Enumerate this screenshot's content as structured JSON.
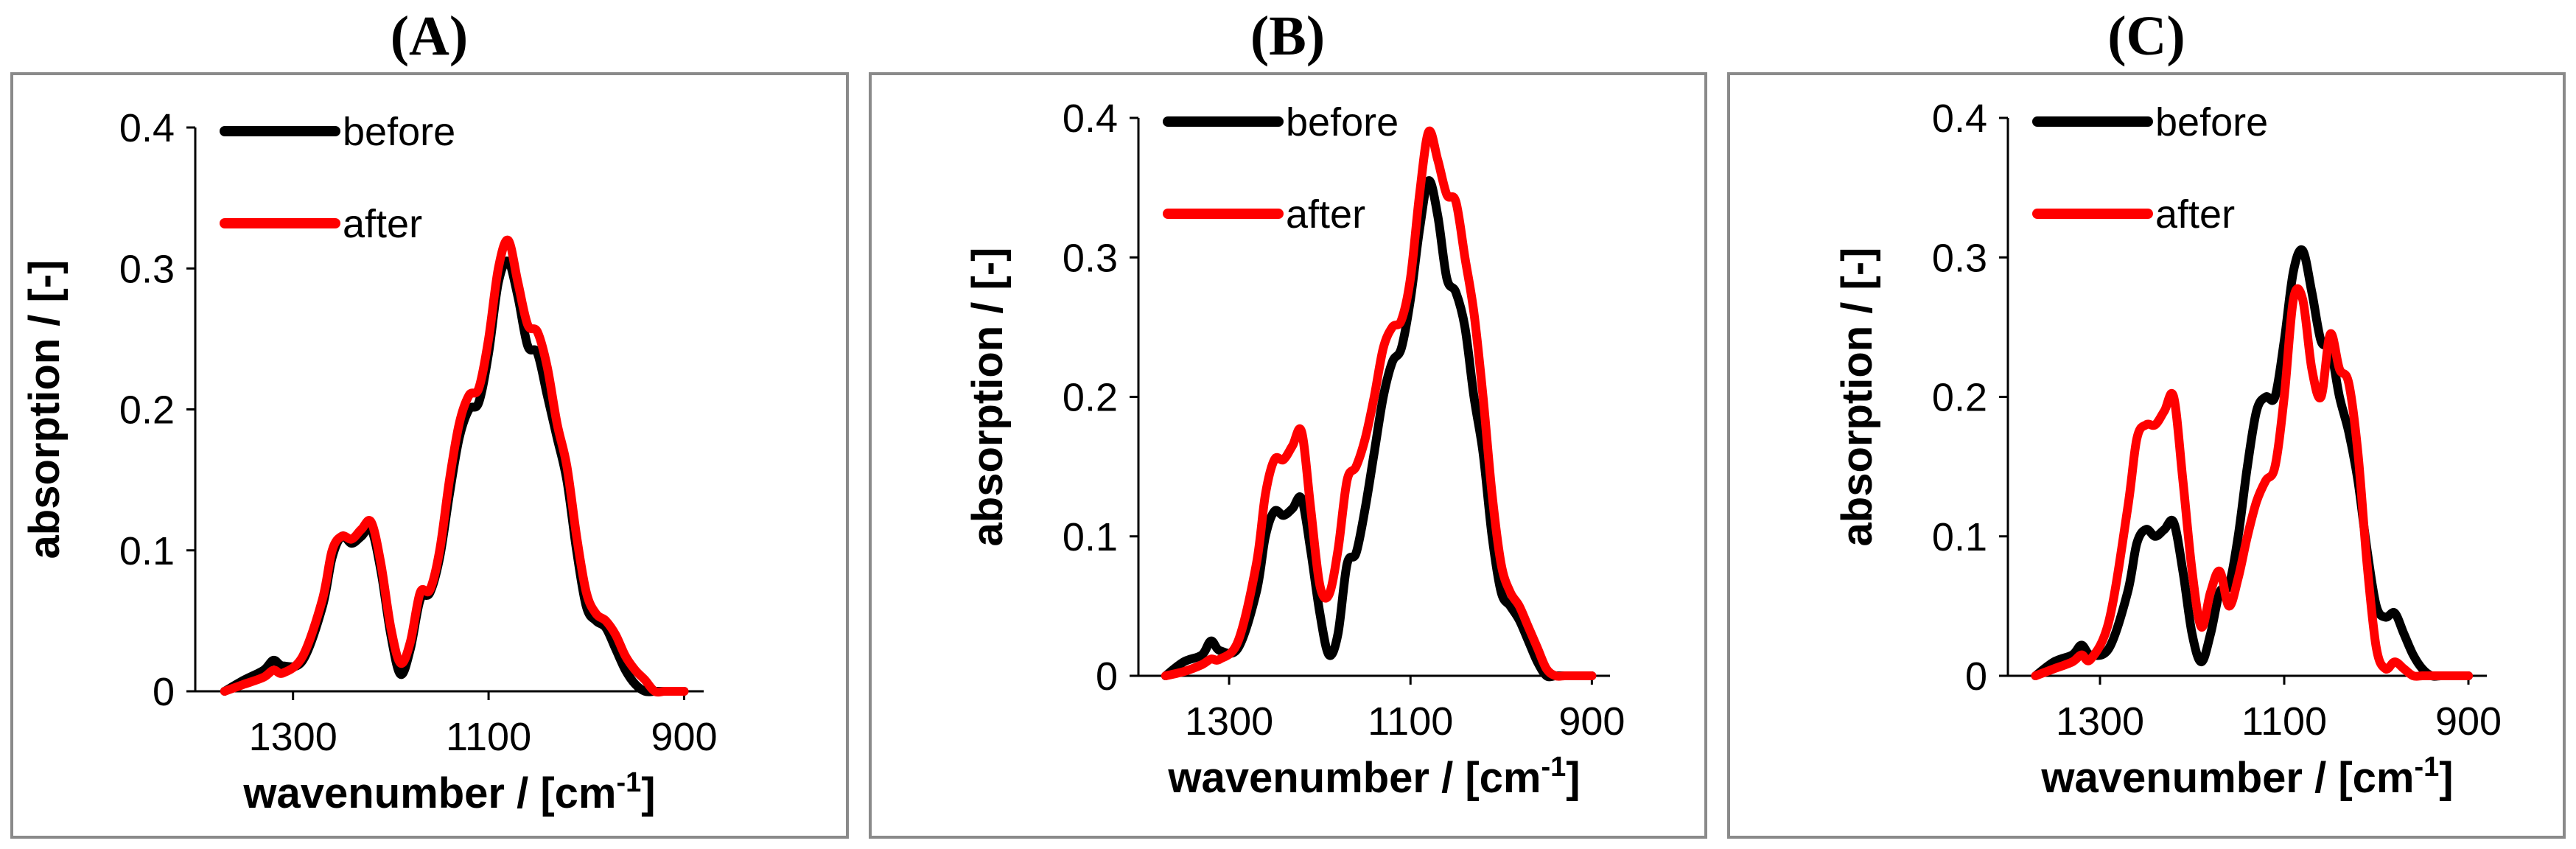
{
  "chart_data": [
    {
      "type": "line",
      "panel": "(A)",
      "title": "(A)",
      "xlabel": "wavenumber / [cm",
      "xlabel_sup": "-1",
      "xlabel_end": "]",
      "ylabel": "absorption / [-]",
      "xlim": [
        1400,
        880
      ],
      "ylim": [
        0,
        0.4
      ],
      "xticks": [
        1300,
        1100,
        900
      ],
      "yticks": [
        0,
        0.1,
        0.2,
        0.3,
        0.4
      ],
      "ytick_labels": [
        "0",
        "0.1",
        "0.2",
        "0.3",
        "0.4"
      ],
      "legend": [
        "before",
        "after"
      ],
      "series": [
        {
          "name": "before",
          "color": "#000000",
          "x": [
            1370,
            1350,
            1330,
            1320,
            1310,
            1290,
            1270,
            1260,
            1250,
            1240,
            1230,
            1220,
            1210,
            1200,
            1190,
            1180,
            1170,
            1160,
            1150,
            1140,
            1130,
            1120,
            1110,
            1100,
            1090,
            1080,
            1070,
            1060,
            1050,
            1040,
            1030,
            1020,
            1010,
            1000,
            990,
            980,
            970,
            960,
            950,
            940,
            930,
            920,
            910,
            900
          ],
          "y": [
            0,
            0.008,
            0.015,
            0.022,
            0.018,
            0.022,
            0.06,
            0.095,
            0.11,
            0.105,
            0.11,
            0.115,
            0.085,
            0.04,
            0.012,
            0.03,
            0.065,
            0.07,
            0.095,
            0.14,
            0.18,
            0.2,
            0.205,
            0.24,
            0.29,
            0.305,
            0.28,
            0.245,
            0.24,
            0.21,
            0.18,
            0.15,
            0.1,
            0.06,
            0.05,
            0.045,
            0.03,
            0.015,
            0.005,
            0.0,
            0.0,
            0.0,
            0.0,
            0.0
          ]
        },
        {
          "name": "after",
          "color": "#ff0000",
          "x": [
            1370,
            1350,
            1330,
            1320,
            1310,
            1290,
            1270,
            1260,
            1250,
            1240,
            1230,
            1220,
            1210,
            1200,
            1190,
            1180,
            1170,
            1160,
            1150,
            1140,
            1130,
            1120,
            1110,
            1100,
            1090,
            1080,
            1070,
            1060,
            1050,
            1040,
            1030,
            1020,
            1010,
            1000,
            990,
            980,
            970,
            960,
            950,
            940,
            930,
            920,
            910,
            900
          ],
          "y": [
            0,
            0.005,
            0.01,
            0.015,
            0.013,
            0.025,
            0.065,
            0.1,
            0.11,
            0.108,
            0.115,
            0.12,
            0.09,
            0.045,
            0.02,
            0.035,
            0.07,
            0.072,
            0.1,
            0.15,
            0.19,
            0.21,
            0.215,
            0.25,
            0.3,
            0.32,
            0.29,
            0.26,
            0.255,
            0.23,
            0.19,
            0.16,
            0.11,
            0.07,
            0.055,
            0.05,
            0.04,
            0.025,
            0.015,
            0.008,
            0.0,
            0.0,
            0.0,
            0.0
          ]
        }
      ]
    },
    {
      "type": "line",
      "panel": "(B)",
      "title": "(B)",
      "xlabel": "wavenumber / [cm",
      "xlabel_sup": "-1",
      "xlabel_end": "]",
      "ylabel": "absorption / [-]",
      "xlim": [
        1400,
        880
      ],
      "ylim": [
        0,
        0.4
      ],
      "xticks": [
        1300,
        1100,
        900
      ],
      "yticks": [
        0,
        0.1,
        0.2,
        0.3,
        0.4
      ],
      "ytick_labels": [
        "0",
        "0.1",
        "0.2",
        "0.3",
        "0.4"
      ],
      "legend": [
        "before",
        "after"
      ],
      "series": [
        {
          "name": "before",
          "color": "#000000",
          "x": [
            1370,
            1350,
            1330,
            1320,
            1310,
            1290,
            1270,
            1260,
            1250,
            1240,
            1230,
            1220,
            1210,
            1200,
            1190,
            1180,
            1170,
            1160,
            1150,
            1140,
            1130,
            1120,
            1110,
            1100,
            1090,
            1080,
            1070,
            1060,
            1050,
            1040,
            1030,
            1020,
            1010,
            1000,
            990,
            980,
            970,
            960,
            950,
            940,
            930,
            920,
            910,
            900
          ],
          "y": [
            0,
            0.01,
            0.015,
            0.025,
            0.018,
            0.02,
            0.06,
            0.1,
            0.118,
            0.115,
            0.12,
            0.127,
            0.09,
            0.045,
            0.015,
            0.03,
            0.08,
            0.088,
            0.12,
            0.16,
            0.2,
            0.225,
            0.235,
            0.27,
            0.32,
            0.355,
            0.33,
            0.285,
            0.275,
            0.25,
            0.2,
            0.16,
            0.1,
            0.06,
            0.05,
            0.04,
            0.025,
            0.01,
            0.0,
            0.0,
            0.0,
            0.0,
            0.0,
            0.0
          ]
        },
        {
          "name": "after",
          "color": "#ff0000",
          "x": [
            1370,
            1350,
            1330,
            1320,
            1310,
            1290,
            1270,
            1260,
            1250,
            1240,
            1230,
            1220,
            1210,
            1200,
            1190,
            1180,
            1170,
            1160,
            1150,
            1140,
            1130,
            1120,
            1110,
            1100,
            1090,
            1080,
            1070,
            1060,
            1050,
            1040,
            1030,
            1020,
            1010,
            1000,
            990,
            980,
            970,
            960,
            950,
            940,
            930,
            920,
            910,
            900
          ],
          "y": [
            0,
            0.003,
            0.008,
            0.012,
            0.012,
            0.025,
            0.08,
            0.13,
            0.155,
            0.155,
            0.165,
            0.175,
            0.12,
            0.065,
            0.058,
            0.09,
            0.14,
            0.15,
            0.17,
            0.2,
            0.235,
            0.25,
            0.255,
            0.285,
            0.345,
            0.39,
            0.37,
            0.345,
            0.34,
            0.3,
            0.26,
            0.2,
            0.13,
            0.08,
            0.06,
            0.05,
            0.035,
            0.02,
            0.005,
            0.0,
            0.0,
            0.0,
            0.0,
            0.0
          ]
        }
      ]
    },
    {
      "type": "line",
      "panel": "(C)",
      "title": "(C)",
      "xlabel": "wavenumber / [cm",
      "xlabel_sup": "-1",
      "xlabel_end": "]",
      "ylabel": "absorption / [-]",
      "xlim": [
        1400,
        880
      ],
      "ylim": [
        0,
        0.4
      ],
      "xticks": [
        1300,
        1100,
        900
      ],
      "yticks": [
        0,
        0.1,
        0.2,
        0.3,
        0.4
      ],
      "ytick_labels": [
        "0",
        "0.1",
        "0.2",
        "0.3",
        "0.4"
      ],
      "legend": [
        "before",
        "after"
      ],
      "series": [
        {
          "name": "before",
          "color": "#000000",
          "x": [
            1370,
            1350,
            1330,
            1320,
            1310,
            1290,
            1270,
            1260,
            1250,
            1240,
            1230,
            1220,
            1210,
            1200,
            1190,
            1180,
            1170,
            1160,
            1150,
            1140,
            1130,
            1120,
            1110,
            1100,
            1090,
            1080,
            1070,
            1060,
            1050,
            1040,
            1030,
            1020,
            1010,
            1000,
            990,
            980,
            970,
            960,
            950,
            940,
            930,
            920,
            910,
            900
          ],
          "y": [
            0,
            0.01,
            0.015,
            0.022,
            0.015,
            0.02,
            0.06,
            0.095,
            0.105,
            0.1,
            0.105,
            0.11,
            0.075,
            0.03,
            0.01,
            0.03,
            0.06,
            0.065,
            0.1,
            0.15,
            0.19,
            0.2,
            0.2,
            0.24,
            0.29,
            0.305,
            0.275,
            0.24,
            0.235,
            0.2,
            0.175,
            0.14,
            0.09,
            0.05,
            0.042,
            0.045,
            0.03,
            0.015,
            0.005,
            0.0,
            0.0,
            0.0,
            0.0,
            0.0
          ]
        },
        {
          "name": "after",
          "color": "#ff0000",
          "x": [
            1370,
            1350,
            1330,
            1320,
            1310,
            1290,
            1270,
            1260,
            1250,
            1240,
            1230,
            1220,
            1210,
            1200,
            1190,
            1180,
            1170,
            1160,
            1150,
            1140,
            1130,
            1120,
            1110,
            1100,
            1090,
            1080,
            1070,
            1060,
            1050,
            1040,
            1030,
            1020,
            1010,
            1000,
            990,
            980,
            970,
            960,
            950,
            940,
            930,
            920,
            910,
            900
          ],
          "y": [
            0,
            0.005,
            0.01,
            0.015,
            0.012,
            0.04,
            0.12,
            0.17,
            0.18,
            0.18,
            0.19,
            0.2,
            0.14,
            0.075,
            0.035,
            0.06,
            0.075,
            0.05,
            0.07,
            0.1,
            0.125,
            0.14,
            0.15,
            0.2,
            0.27,
            0.27,
            0.22,
            0.2,
            0.245,
            0.22,
            0.21,
            0.16,
            0.08,
            0.02,
            0.005,
            0.01,
            0.005,
            0.0,
            0.0,
            0.0,
            0.0,
            0.0,
            0.0,
            0.0
          ]
        }
      ]
    }
  ]
}
